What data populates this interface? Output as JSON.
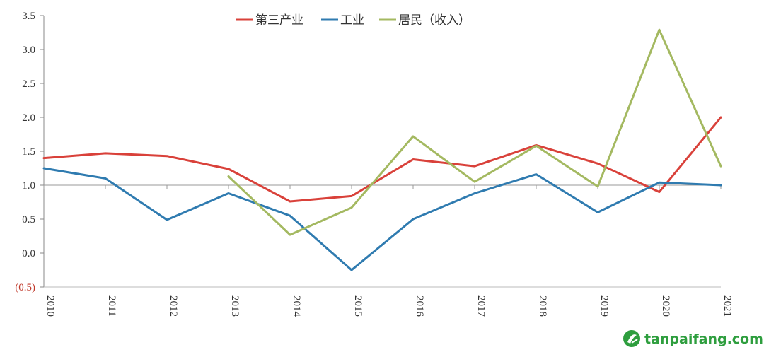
{
  "chart_data": {
    "type": "line",
    "categories": [
      "2010",
      "2011",
      "2012",
      "2013",
      "2014",
      "2015",
      "2016",
      "2017",
      "2018",
      "2019",
      "2020",
      "2021"
    ],
    "series": [
      {
        "name": "第三产业",
        "color": "#d9413a",
        "values": [
          1.4,
          1.47,
          1.43,
          1.24,
          0.76,
          0.84,
          1.38,
          1.28,
          1.59,
          1.32,
          0.9,
          2.0
        ]
      },
      {
        "name": "工业",
        "color": "#2f7bb0",
        "values": [
          1.25,
          1.1,
          0.49,
          0.88,
          0.55,
          -0.25,
          0.5,
          0.88,
          1.16,
          0.6,
          1.04,
          1.0
        ]
      },
      {
        "name": "居民（收入）",
        "color": "#a4b961",
        "values": [
          null,
          null,
          null,
          1.13,
          0.27,
          0.67,
          1.72,
          1.05,
          1.58,
          0.98,
          3.29,
          1.28
        ]
      }
    ],
    "title": "",
    "xlabel": "",
    "ylabel": "",
    "ylim": [
      -0.5,
      3.5
    ],
    "yticks": [
      3.5,
      3.0,
      2.5,
      2.0,
      1.5,
      1.0,
      0.5,
      0.0,
      -0.5
    ],
    "ytick_labels": [
      "3.5",
      "3.0",
      "2.5",
      "2.0",
      "1.5",
      "1.0",
      "0.5",
      "0.0",
      "(0.5)"
    ],
    "reference_line": 1.0,
    "grid": false,
    "legend_position": "top-center"
  },
  "watermark": {
    "text": "tanpaifang.com",
    "icon": "tanpaifang-logo-icon"
  }
}
